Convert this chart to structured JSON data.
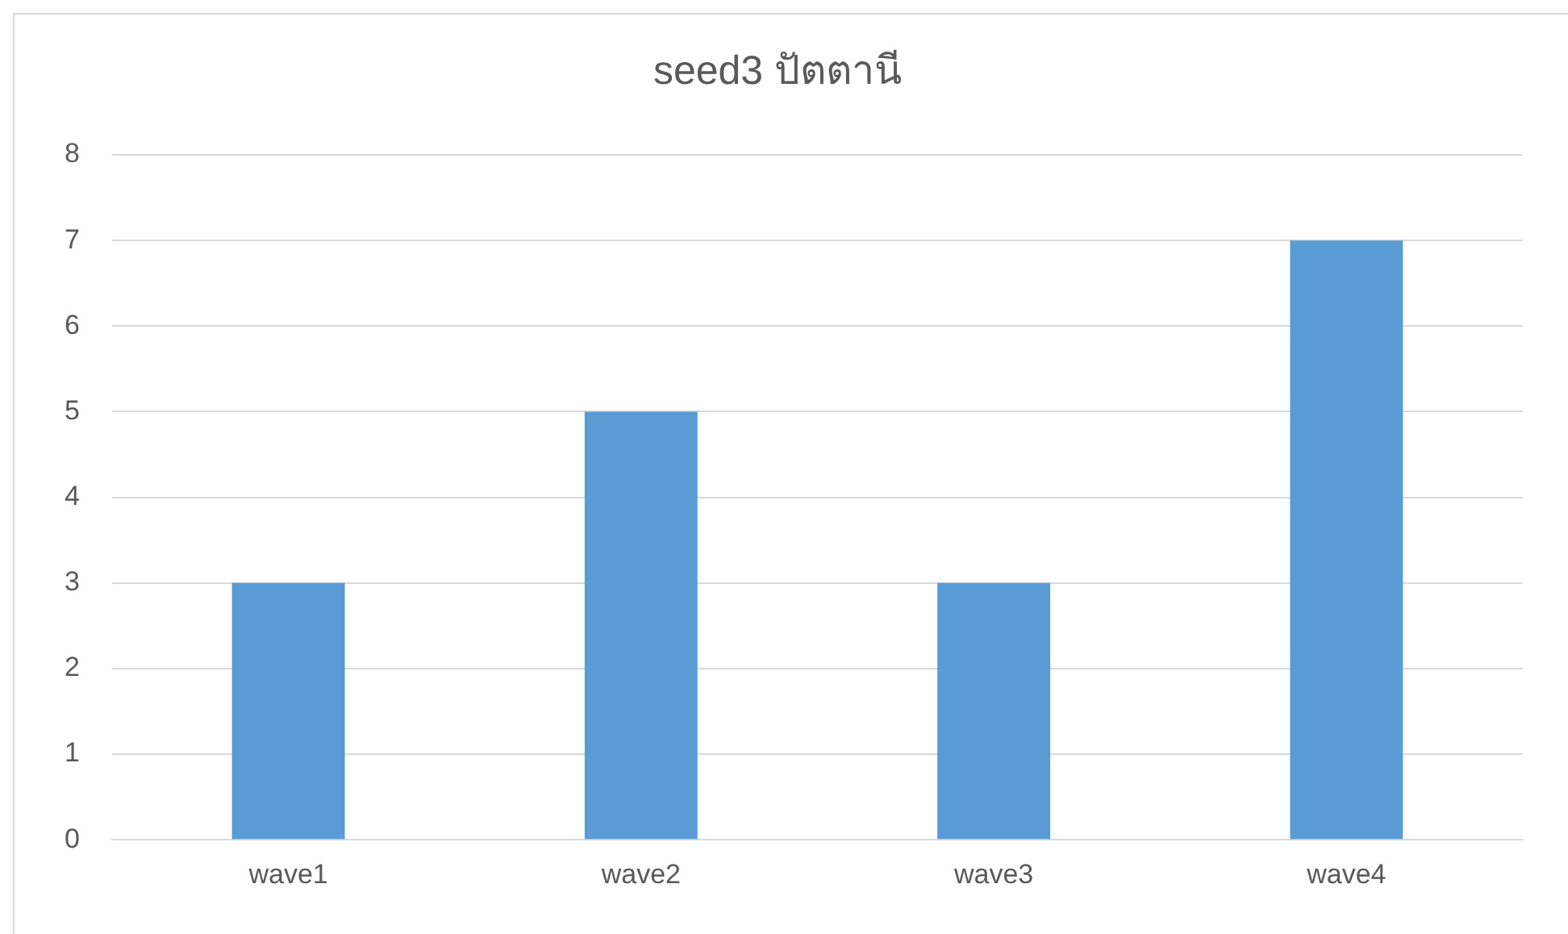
{
  "chart_data": {
    "type": "bar",
    "title": "seed3 ปัตตานี",
    "categories": [
      "wave1",
      "wave2",
      "wave3",
      "wave4"
    ],
    "values": [
      3,
      5,
      3,
      7
    ],
    "color": "#5b9bd5",
    "ylim": [
      0,
      8
    ],
    "yticks": [
      0,
      1,
      2,
      3,
      4,
      5,
      6,
      7,
      8
    ],
    "grid": "y",
    "legend": false
  }
}
